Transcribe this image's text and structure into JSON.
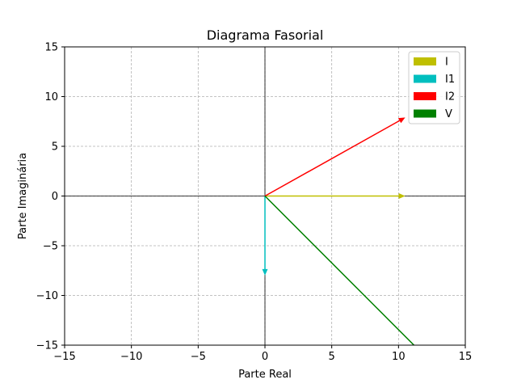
{
  "chart_data": {
    "type": "vector",
    "title": "Diagrama Fasorial",
    "xlabel": "Parte Real",
    "ylabel": "Parte Imaginária",
    "xlim": [
      -15,
      15
    ],
    "ylim": [
      -15,
      15
    ],
    "xticks": [
      -15,
      -10,
      -5,
      0,
      5,
      10,
      15
    ],
    "yticks": [
      -15,
      -10,
      -5,
      0,
      5,
      10,
      15
    ],
    "grid": true,
    "axis_lines_through_origin": true,
    "legend_position": "top-right",
    "series": [
      {
        "name": "I",
        "color": "#bfbf00",
        "x": 10.5,
        "y": 0.0
      },
      {
        "name": "I1",
        "color": "#00bfbf",
        "x": 0.0,
        "y": -8.0
      },
      {
        "name": "I2",
        "color": "#ff0000",
        "x": 10.5,
        "y": 7.9
      },
      {
        "name": "V",
        "color": "#008000",
        "x": 11.9,
        "y": -16.0
      }
    ]
  }
}
